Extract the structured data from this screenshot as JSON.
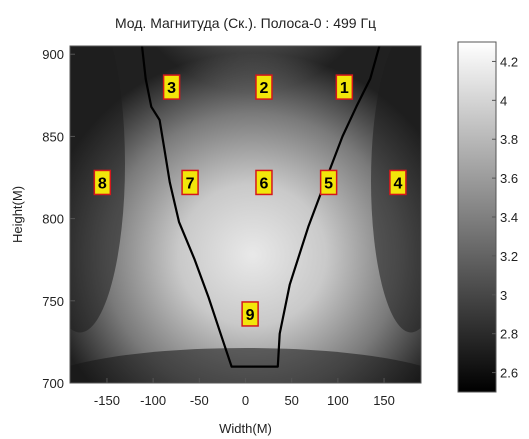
{
  "chart_data": {
    "type": "heatmap",
    "title": "Мод. Магнитуда (Ск.). Полоса-0 : 499 Гц",
    "xlabel": "Width(M)",
    "ylabel": "Height(M)",
    "xlim": [
      -190,
      190
    ],
    "ylim": [
      700,
      905
    ],
    "x_ticks": [
      -150,
      -100,
      -50,
      0,
      50,
      100,
      150
    ],
    "y_ticks": [
      700,
      750,
      800,
      850,
      900
    ],
    "x_tick_labels": [
      "-150",
      "-100",
      "-50",
      "0",
      "50",
      "100",
      "150"
    ],
    "y_tick_labels": [
      "700",
      "750",
      "800",
      "850",
      "900"
    ],
    "colorbar": {
      "range": [
        2.5,
        4.3
      ],
      "ticks": [
        2.6,
        2.8,
        3,
        3.2,
        3.4,
        3.6,
        3.8,
        4,
        4.2
      ],
      "tick_labels": [
        "2.6",
        "2.8",
        "3",
        "3.2",
        "3.4",
        "3.6",
        "3.8",
        "4",
        "4.2"
      ],
      "colormap": "gray"
    },
    "markers": [
      {
        "label": "1",
        "x": 107,
        "y": 880
      },
      {
        "label": "2",
        "x": 20,
        "y": 880
      },
      {
        "label": "3",
        "x": -80,
        "y": 880
      },
      {
        "label": "4",
        "x": 165,
        "y": 822
      },
      {
        "label": "5",
        "x": 90,
        "y": 822
      },
      {
        "label": "6",
        "x": 20,
        "y": 822
      },
      {
        "label": "7",
        "x": -60,
        "y": 822
      },
      {
        "label": "8",
        "x": -155,
        "y": 822
      },
      {
        "label": "9",
        "x": 5,
        "y": 742
      }
    ],
    "boundary": [
      [
        -112,
        905
      ],
      [
        -108,
        885
      ],
      [
        -102,
        868
      ],
      [
        -93,
        860
      ],
      [
        -88,
        843
      ],
      [
        -82,
        822
      ],
      [
        -72,
        798
      ],
      [
        -55,
        775
      ],
      [
        -40,
        752
      ],
      [
        -27,
        730
      ],
      [
        -15,
        710
      ],
      [
        35,
        710
      ],
      [
        37,
        730
      ],
      [
        48,
        760
      ],
      [
        68,
        795
      ],
      [
        88,
        825
      ],
      [
        105,
        850
      ],
      [
        120,
        868
      ],
      [
        135,
        885
      ],
      [
        145,
        905
      ]
    ],
    "marker_color": "#f2e60a",
    "marker_border_color": "#d4181c",
    "boundary_color": "#000000"
  }
}
